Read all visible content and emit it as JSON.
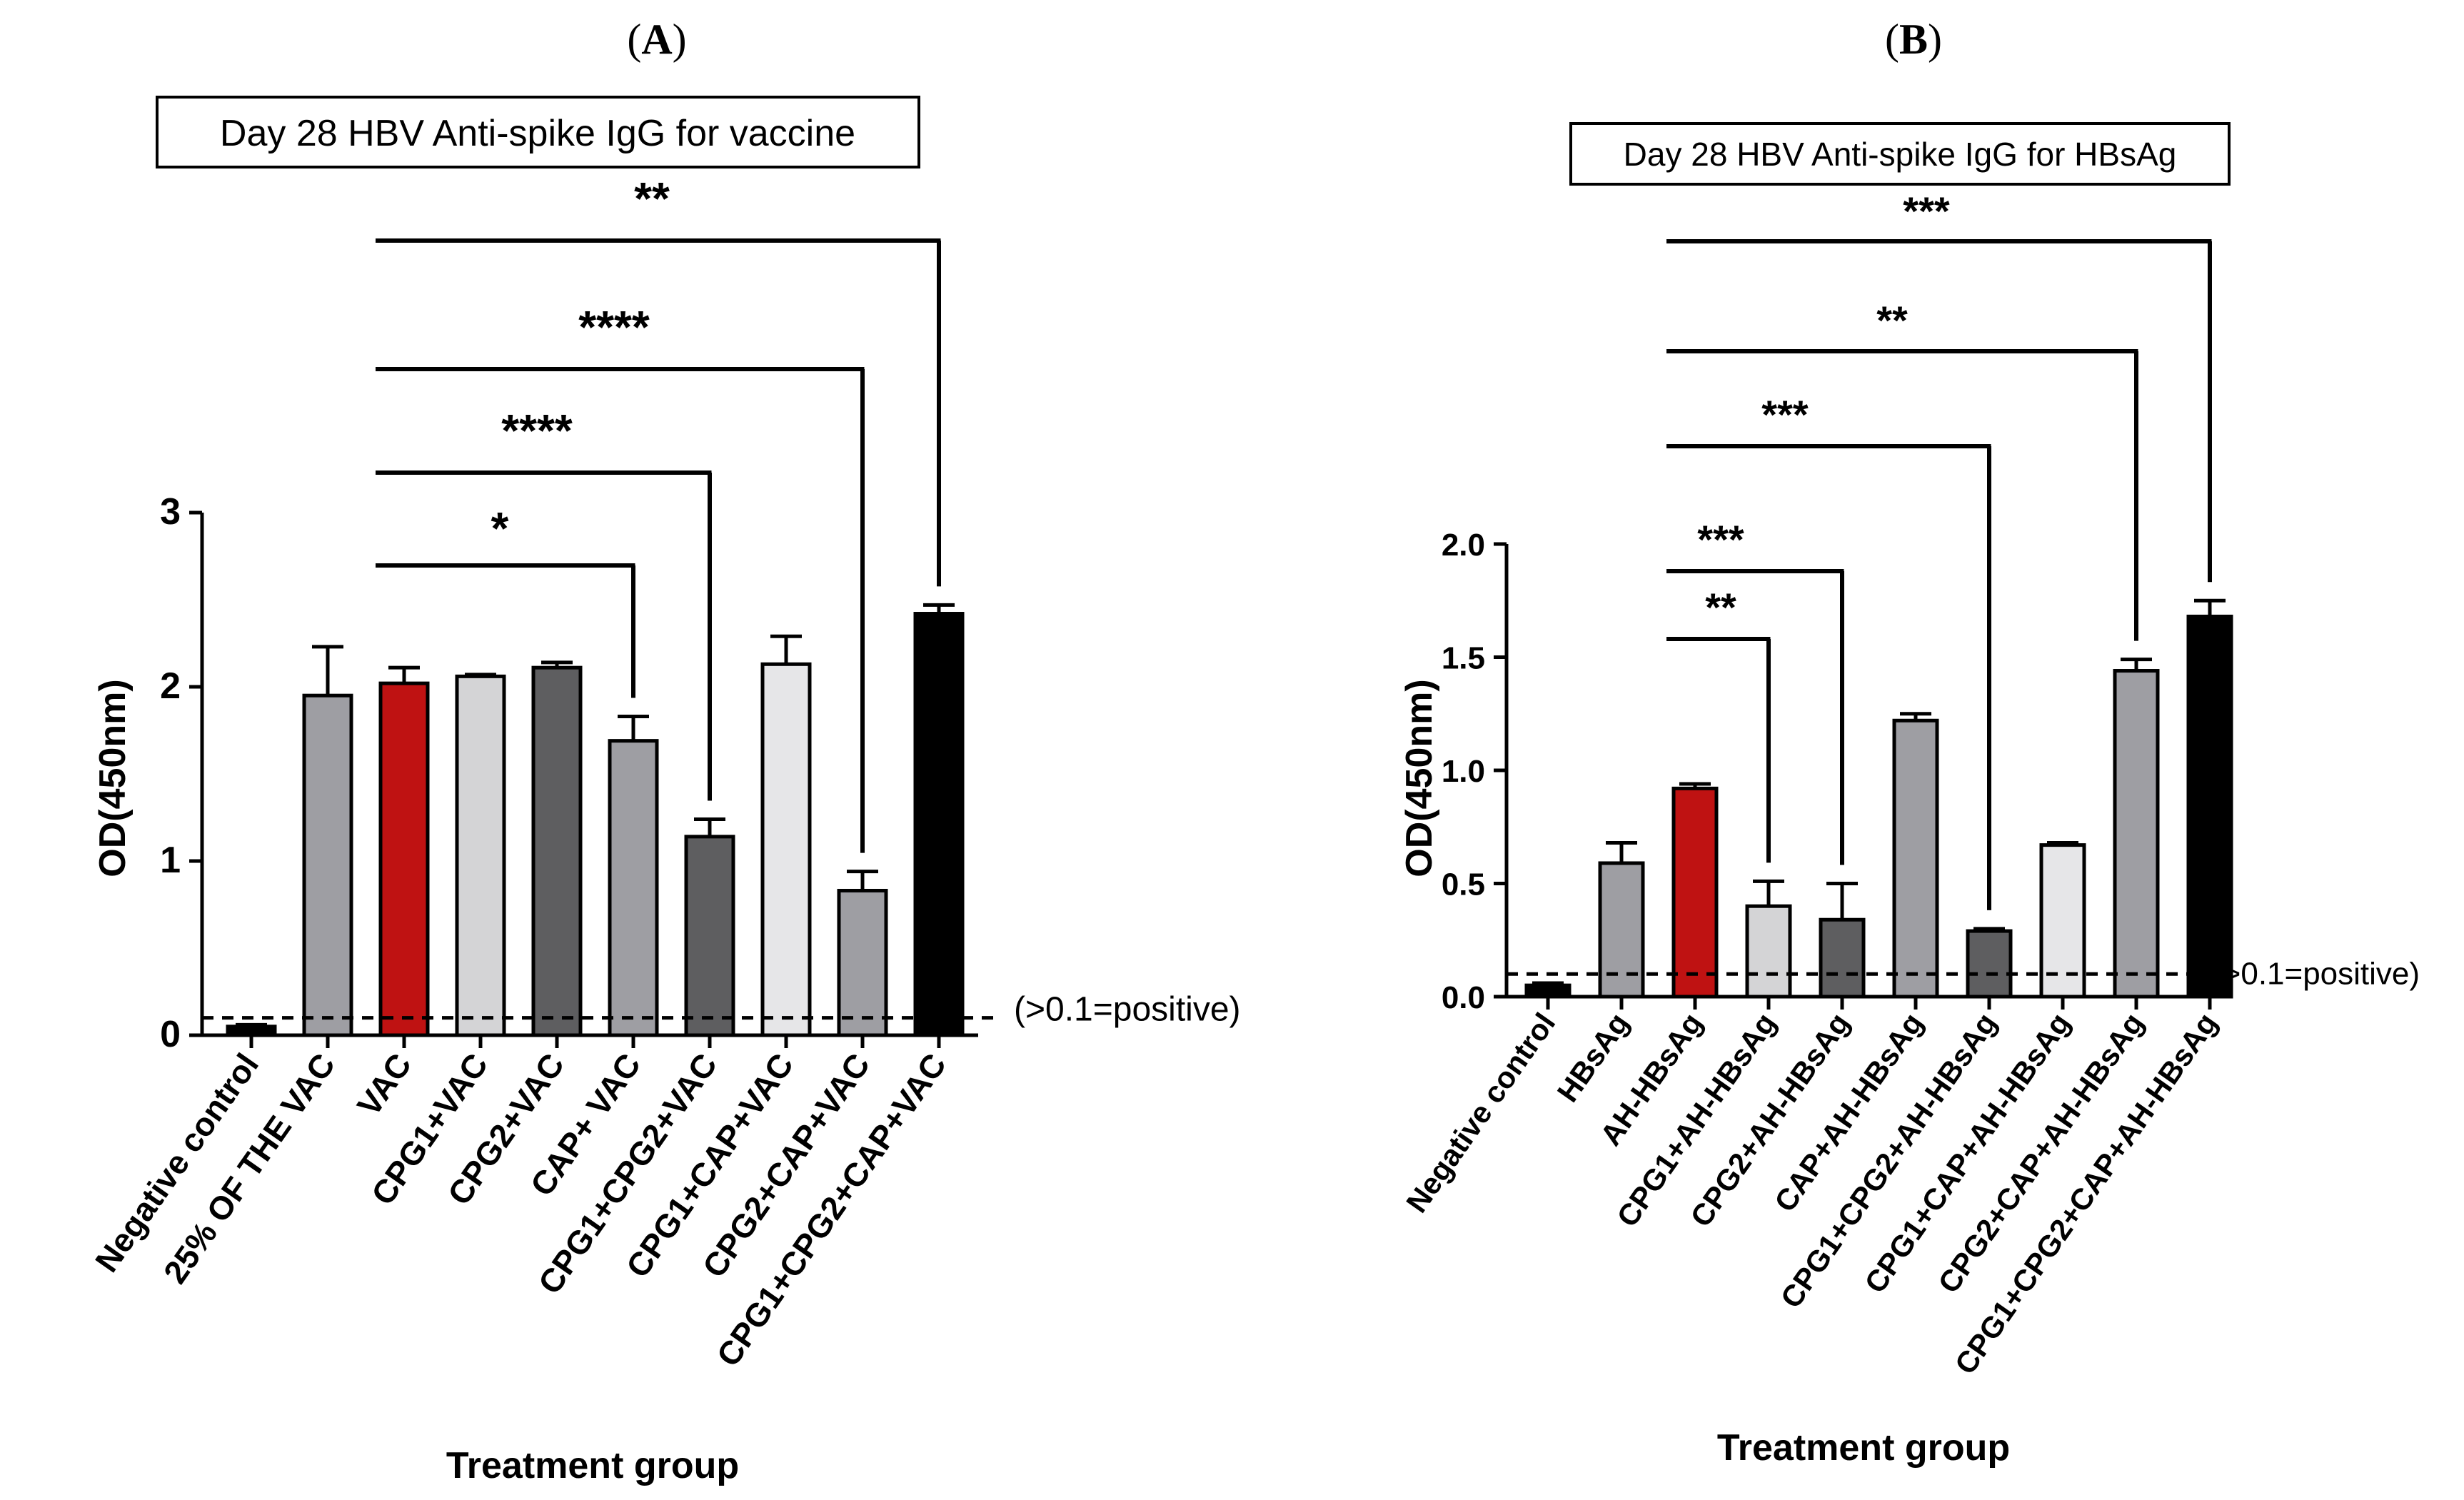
{
  "chart_data": [
    {
      "panel": "A",
      "type": "bar",
      "title": "Day 28 HBV Anti-spike IgG for vaccine",
      "xlabel": "Treatment group",
      "ylabel": "OD(450nm)",
      "ylim": [
        0,
        3
      ],
      "yticks": [
        "0",
        "1",
        "2",
        "3"
      ],
      "categories": [
        "Negative control",
        "25% OF THE VAC",
        "VAC",
        "CPG1+VAC",
        "CPG2+VAC",
        "CAP+ VAC",
        "CPG1+CPG2+VAC",
        "CPG1+CAP+VAC",
        "CPG2+CAP+VAC",
        "CPG1+CPG2+CAP+VAC"
      ],
      "values": [
        0.05,
        1.95,
        2.02,
        2.06,
        2.11,
        1.69,
        1.14,
        2.13,
        0.83,
        2.42
      ],
      "errors": [
        0.01,
        0.28,
        0.09,
        0.01,
        0.03,
        0.14,
        0.1,
        0.16,
        0.11,
        0.05
      ],
      "bar_colors": [
        "#000000",
        "#9e9ea3",
        "#bf1212",
        "#d4d4d6",
        "#5e5e60",
        "#9e9ea3",
        "#5e5e60",
        "#e6e6e8",
        "#9e9ea3",
        "#000000"
      ],
      "reference_line": {
        "value": 0.1,
        "label": "(>0.1=positive)"
      },
      "comparisons": [
        {
          "from": 2,
          "to": 5,
          "label": "*"
        },
        {
          "from": 2,
          "to": 6,
          "label": "****"
        },
        {
          "from": 2,
          "to": 8,
          "label": "****"
        },
        {
          "from": 2,
          "to": 9,
          "label": "**"
        }
      ]
    },
    {
      "panel": "B",
      "type": "bar",
      "title": "Day 28 HBV Anti-spike IgG for HBsAg",
      "xlabel": "Treatment group",
      "ylabel": "OD(450nm)",
      "ylim": [
        0,
        2.0
      ],
      "yticks": [
        "0.0",
        "0.5",
        "1.0",
        "1.5",
        "2.0"
      ],
      "categories": [
        "Negative control",
        "HBsAg",
        "AH-HBsAg",
        "CPG1+AH-HBsAg",
        "CPG2+AH-HBsAg",
        "CAP+AH-HBsAg",
        "CPG1+CPG2+AH-HBsAg",
        "CPG1+CAP+AH-HBsAg",
        "CPG2+CAP+AH-HBsAg",
        "CPG1+CPG2+CAP+AH-HBsAg"
      ],
      "values": [
        0.05,
        0.59,
        0.92,
        0.4,
        0.34,
        1.22,
        0.29,
        0.67,
        1.44,
        1.68
      ],
      "errors": [
        0.01,
        0.09,
        0.02,
        0.11,
        0.16,
        0.03,
        0.01,
        0.01,
        0.05,
        0.07
      ],
      "bar_colors": [
        "#000000",
        "#9e9ea3",
        "#bf1212",
        "#d4d4d6",
        "#5e5e60",
        "#9e9ea3",
        "#5e5e60",
        "#e6e6e8",
        "#9e9ea3",
        "#000000"
      ],
      "reference_line": {
        "value": 0.1,
        "label": "(>0.1=positive)"
      },
      "comparisons": [
        {
          "from": 2,
          "to": 3,
          "label": "**"
        },
        {
          "from": 2,
          "to": 4,
          "label": "***"
        },
        {
          "from": 2,
          "to": 6,
          "label": "***"
        },
        {
          "from": 2,
          "to": 8,
          "label": "**"
        },
        {
          "from": 2,
          "to": 9,
          "label": "***"
        }
      ]
    }
  ]
}
